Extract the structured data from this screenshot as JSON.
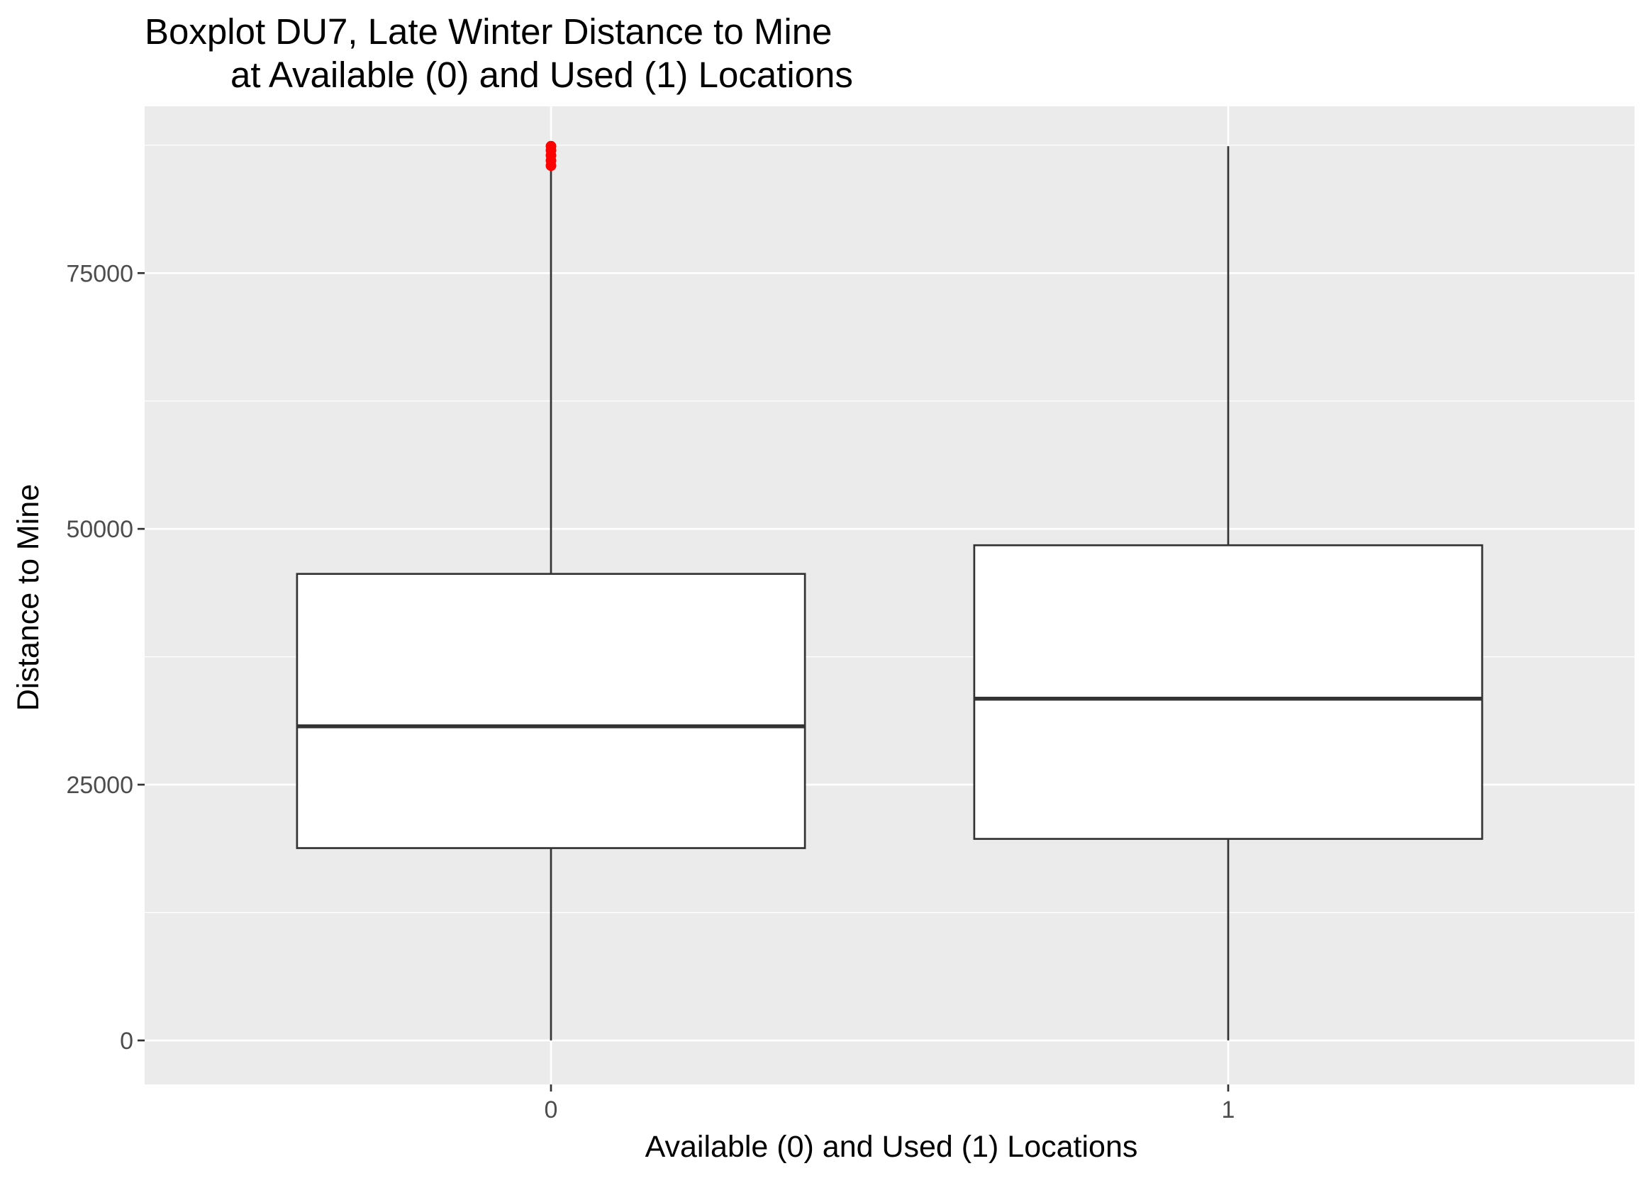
{
  "chart_data": {
    "type": "boxplot",
    "title": "Boxplot DU7, Late Winter Distance to Mine",
    "subtitle": "at Available (0) and Used (1) Locations",
    "xlabel": "Available (0) and Used (1) Locations",
    "ylabel": "Distance to Mine",
    "categories": [
      "0",
      "1"
    ],
    "y_ticks": [
      0,
      25000,
      50000,
      75000
    ],
    "y_tick_labels": [
      "0",
      "25000",
      "50000",
      "75000"
    ],
    "ylim": [
      -4300,
      91300
    ],
    "grid": true,
    "boxes": [
      {
        "category": "0",
        "min": 0,
        "q1": 18800,
        "median": 30700,
        "q3": 45600,
        "max": 85300,
        "outliers": [
          85500,
          86000,
          86500,
          87000,
          87400
        ]
      },
      {
        "category": "1",
        "min": 0,
        "q1": 19700,
        "median": 33400,
        "q3": 48400,
        "max": 87400,
        "outliers": []
      }
    ],
    "colors": {
      "panel_background": "#ebebeb",
      "grid": "#ffffff",
      "box_fill": "#ffffff",
      "box_line": "#333333",
      "outlier": "#ff0000"
    }
  }
}
